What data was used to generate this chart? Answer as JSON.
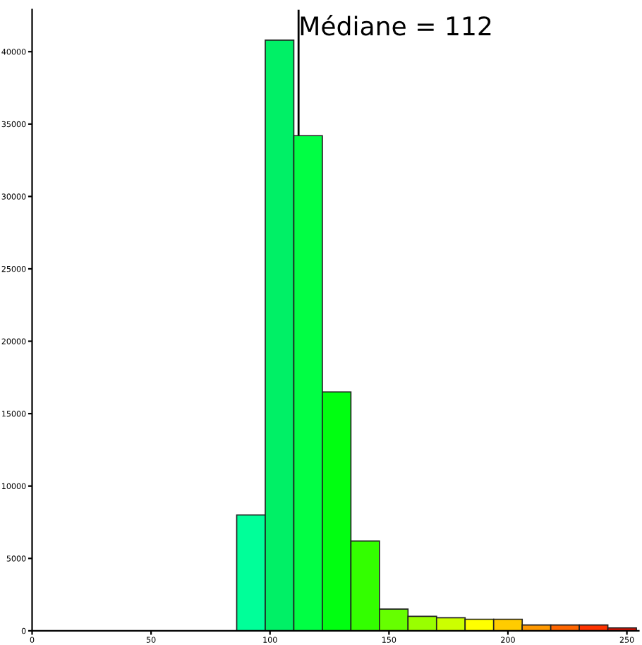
{
  "chart_data": {
    "type": "histogram",
    "bins": [
      86,
      98,
      110,
      122,
      134,
      146,
      158,
      170,
      182,
      194,
      206,
      218,
      230,
      242,
      254
    ],
    "values": [
      8000,
      40800,
      34200,
      16500,
      6200,
      1500,
      1000,
      900,
      800,
      800,
      400,
      400,
      400,
      200
    ],
    "colors": [
      "#00ff99",
      "#00f066",
      "#00ff44",
      "#00ff11",
      "#33ff00",
      "#66ff00",
      "#99ff00",
      "#ccff00",
      "#ffff00",
      "#ffcc00",
      "#ff9900",
      "#ff6600",
      "#ff3300",
      "#dd1100"
    ],
    "xlim": [
      0,
      255
    ],
    "ylim": [
      0,
      42900
    ],
    "xticks": [
      0,
      50,
      100,
      150,
      200,
      250
    ],
    "yticks": [
      0,
      5000,
      10000,
      15000,
      20000,
      25000,
      30000,
      35000,
      40000
    ],
    "ref_lines": [
      {
        "axis": "x",
        "value": 112,
        "label": "Médiane = 112",
        "color": "#000000"
      }
    ],
    "grid": false
  }
}
